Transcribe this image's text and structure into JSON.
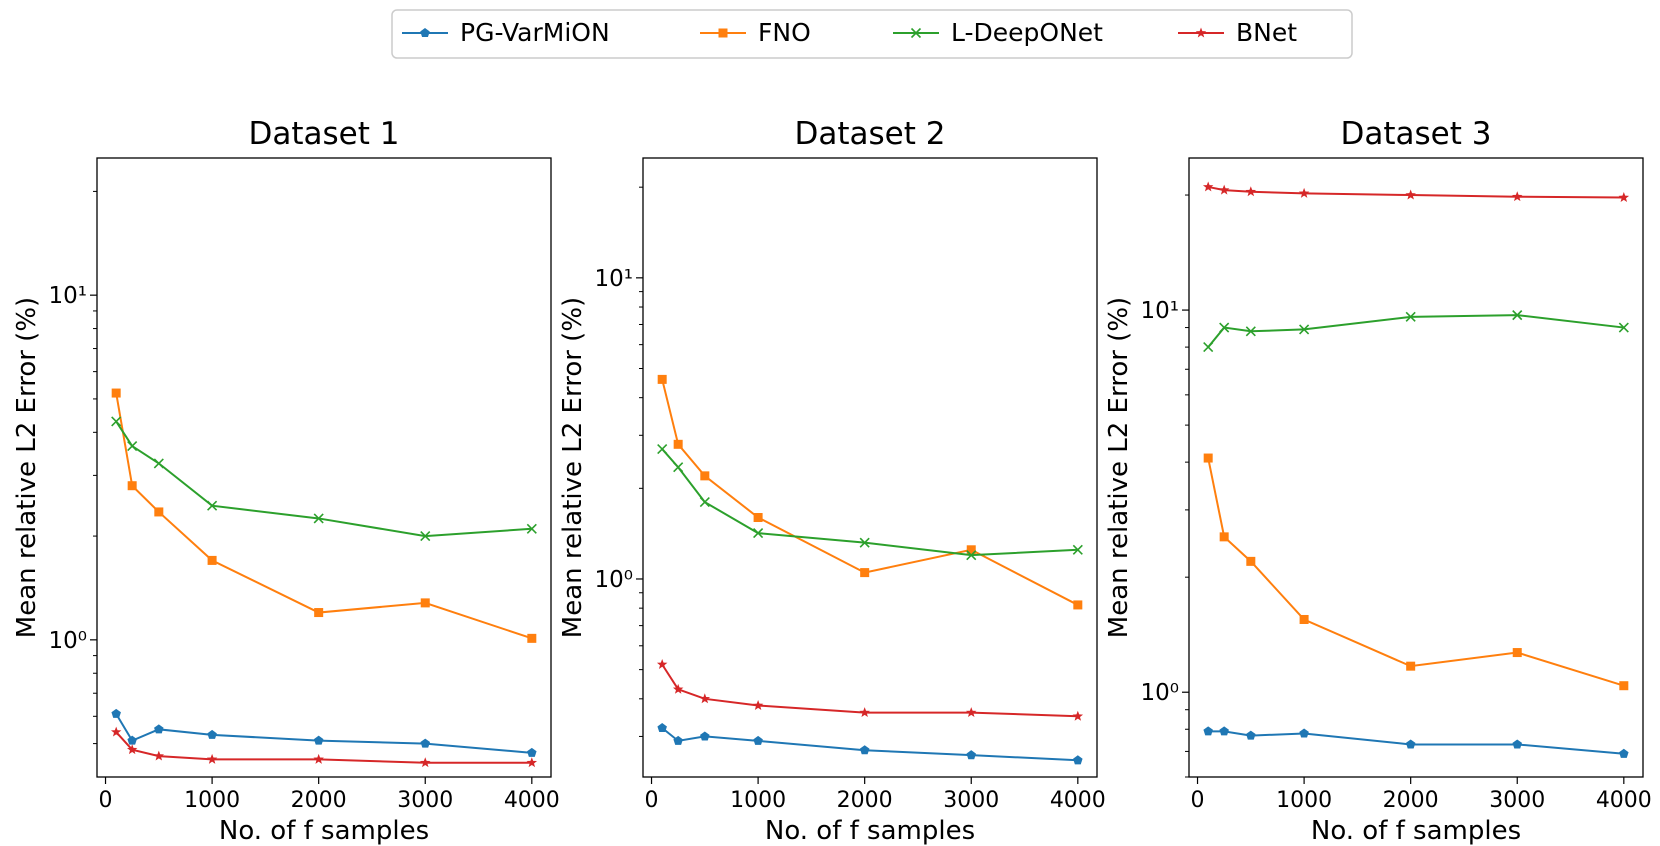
{
  "legend": {
    "entries": [
      {
        "name": "PG-VarMiON",
        "color": "#1f77b4",
        "marker": "pentagon"
      },
      {
        "name": "FNO",
        "color": "#ff7f0e",
        "marker": "square"
      },
      {
        "name": "L-DeepONet",
        "color": "#2ca02c",
        "marker": "x"
      },
      {
        "name": "BNet",
        "color": "#d62728",
        "marker": "star"
      }
    ]
  },
  "chart_data": [
    {
      "type": "line",
      "title": "Dataset 1",
      "xlabel": "No. of f samples",
      "ylabel": "Mean relative L2 Error (%)",
      "yscale": "log",
      "xlim": [
        -80,
        4180
      ],
      "ylim": [
        0.4,
        25
      ],
      "xticks": [
        0,
        1000,
        2000,
        3000,
        4000
      ],
      "xtick_labels": [
        "0",
        "1000",
        "2000",
        "3000",
        "4000"
      ],
      "yticks_major": [
        1,
        10
      ],
      "ytick_labels": [
        "10⁰",
        "10¹"
      ],
      "x": [
        100,
        250,
        500,
        1000,
        2000,
        3000,
        4000
      ],
      "series": [
        {
          "name": "PG-VarMiON",
          "color": "#1f77b4",
          "marker": "pentagon",
          "values": [
            0.61,
            0.51,
            0.55,
            0.53,
            0.51,
            0.5,
            0.47
          ]
        },
        {
          "name": "FNO",
          "color": "#ff7f0e",
          "marker": "square",
          "values": [
            5.2,
            2.8,
            2.35,
            1.7,
            1.2,
            1.28,
            1.01
          ]
        },
        {
          "name": "L-DeepONet",
          "color": "#2ca02c",
          "marker": "x",
          "values": [
            4.3,
            3.65,
            3.25,
            2.45,
            2.25,
            2.0,
            2.1
          ]
        },
        {
          "name": "BNet",
          "color": "#d62728",
          "marker": "star",
          "values": [
            0.54,
            0.48,
            0.46,
            0.45,
            0.45,
            0.44,
            0.44
          ]
        }
      ]
    },
    {
      "type": "line",
      "title": "Dataset 2",
      "xlabel": "No. of f samples",
      "ylabel": "Mean relative L2 Error (%)",
      "yscale": "log",
      "xlim": [
        -80,
        4180
      ],
      "ylim": [
        0.22,
        25
      ],
      "xticks": [
        0,
        1000,
        2000,
        3000,
        4000
      ],
      "xtick_labels": [
        "0",
        "1000",
        "2000",
        "3000",
        "4000"
      ],
      "yticks_major": [
        1,
        10
      ],
      "ytick_labels": [
        "10⁰",
        "10¹"
      ],
      "x": [
        100,
        250,
        500,
        1000,
        2000,
        3000,
        4000
      ],
      "series": [
        {
          "name": "PG-VarMiON",
          "color": "#1f77b4",
          "marker": "pentagon",
          "values": [
            0.32,
            0.29,
            0.3,
            0.29,
            0.27,
            0.26,
            0.25
          ]
        },
        {
          "name": "FNO",
          "color": "#ff7f0e",
          "marker": "square",
          "values": [
            4.6,
            2.8,
            2.2,
            1.6,
            1.05,
            1.25,
            0.82
          ]
        },
        {
          "name": "L-DeepONet",
          "color": "#2ca02c",
          "marker": "x",
          "values": [
            2.7,
            2.35,
            1.8,
            1.42,
            1.32,
            1.2,
            1.25
          ]
        },
        {
          "name": "BNet",
          "color": "#d62728",
          "marker": "star",
          "values": [
            0.52,
            0.43,
            0.4,
            0.38,
            0.36,
            0.36,
            0.35
          ]
        }
      ]
    },
    {
      "type": "line",
      "title": "Dataset 3",
      "xlabel": "No. of f samples",
      "ylabel": "Mean relative L2 Error (%)",
      "yscale": "log",
      "xlim": [
        -80,
        4180
      ],
      "ylim": [
        0.6,
        25
      ],
      "xticks": [
        0,
        1000,
        2000,
        3000,
        4000
      ],
      "xtick_labels": [
        "0",
        "1000",
        "2000",
        "3000",
        "4000"
      ],
      "yticks_major": [
        1,
        10
      ],
      "ytick_labels": [
        "10⁰",
        "10¹"
      ],
      "x": [
        100,
        250,
        500,
        1000,
        2000,
        3000,
        4000
      ],
      "series": [
        {
          "name": "PG-VarMiON",
          "color": "#1f77b4",
          "marker": "pentagon",
          "values": [
            0.79,
            0.79,
            0.77,
            0.78,
            0.73,
            0.73,
            0.69
          ]
        },
        {
          "name": "FNO",
          "color": "#ff7f0e",
          "marker": "square",
          "values": [
            4.1,
            2.55,
            2.2,
            1.55,
            1.17,
            1.27,
            1.04
          ]
        },
        {
          "name": "L-DeepONet",
          "color": "#2ca02c",
          "marker": "x",
          "values": [
            8.0,
            9.0,
            8.8,
            8.9,
            9.6,
            9.7,
            9.0
          ]
        },
        {
          "name": "BNet",
          "color": "#d62728",
          "marker": "star",
          "values": [
            21.0,
            20.6,
            20.4,
            20.2,
            20.0,
            19.8,
            19.7
          ]
        }
      ]
    }
  ]
}
